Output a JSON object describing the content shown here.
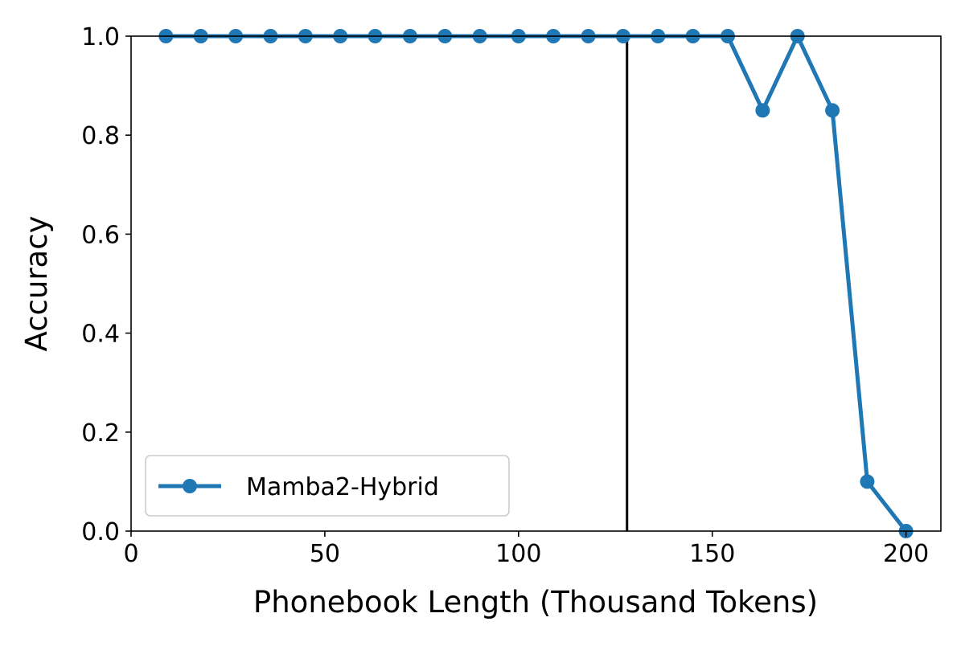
{
  "chart_data": {
    "type": "line",
    "xlabel": "Phonebook Length (Thousand Tokens)",
    "ylabel": "Accuracy",
    "xlim": [
      0,
      209
    ],
    "ylim": [
      0.0,
      1.0
    ],
    "x_ticks": [
      0,
      50,
      100,
      150,
      200
    ],
    "y_ticks": [
      "0.0",
      "0.2",
      "0.4",
      "0.6",
      "0.8",
      "1.0"
    ],
    "grid": false,
    "legend_position": "lower-left",
    "vertical_line": {
      "x": 128,
      "color": "#000000"
    },
    "series": [
      {
        "name": "Mamba2-Hybrid",
        "color": "#1f77b4",
        "marker": "circle",
        "x": [
          9,
          18,
          27,
          36,
          45,
          54,
          63,
          72,
          81,
          90,
          100,
          109,
          118,
          127,
          136,
          145,
          154,
          163,
          172,
          181,
          190,
          200
        ],
        "y": [
          1.0,
          1.0,
          1.0,
          1.0,
          1.0,
          1.0,
          1.0,
          1.0,
          1.0,
          1.0,
          1.0,
          1.0,
          1.0,
          1.0,
          1.0,
          1.0,
          1.0,
          0.85,
          1.0,
          0.85,
          0.1,
          0.0
        ]
      }
    ]
  }
}
